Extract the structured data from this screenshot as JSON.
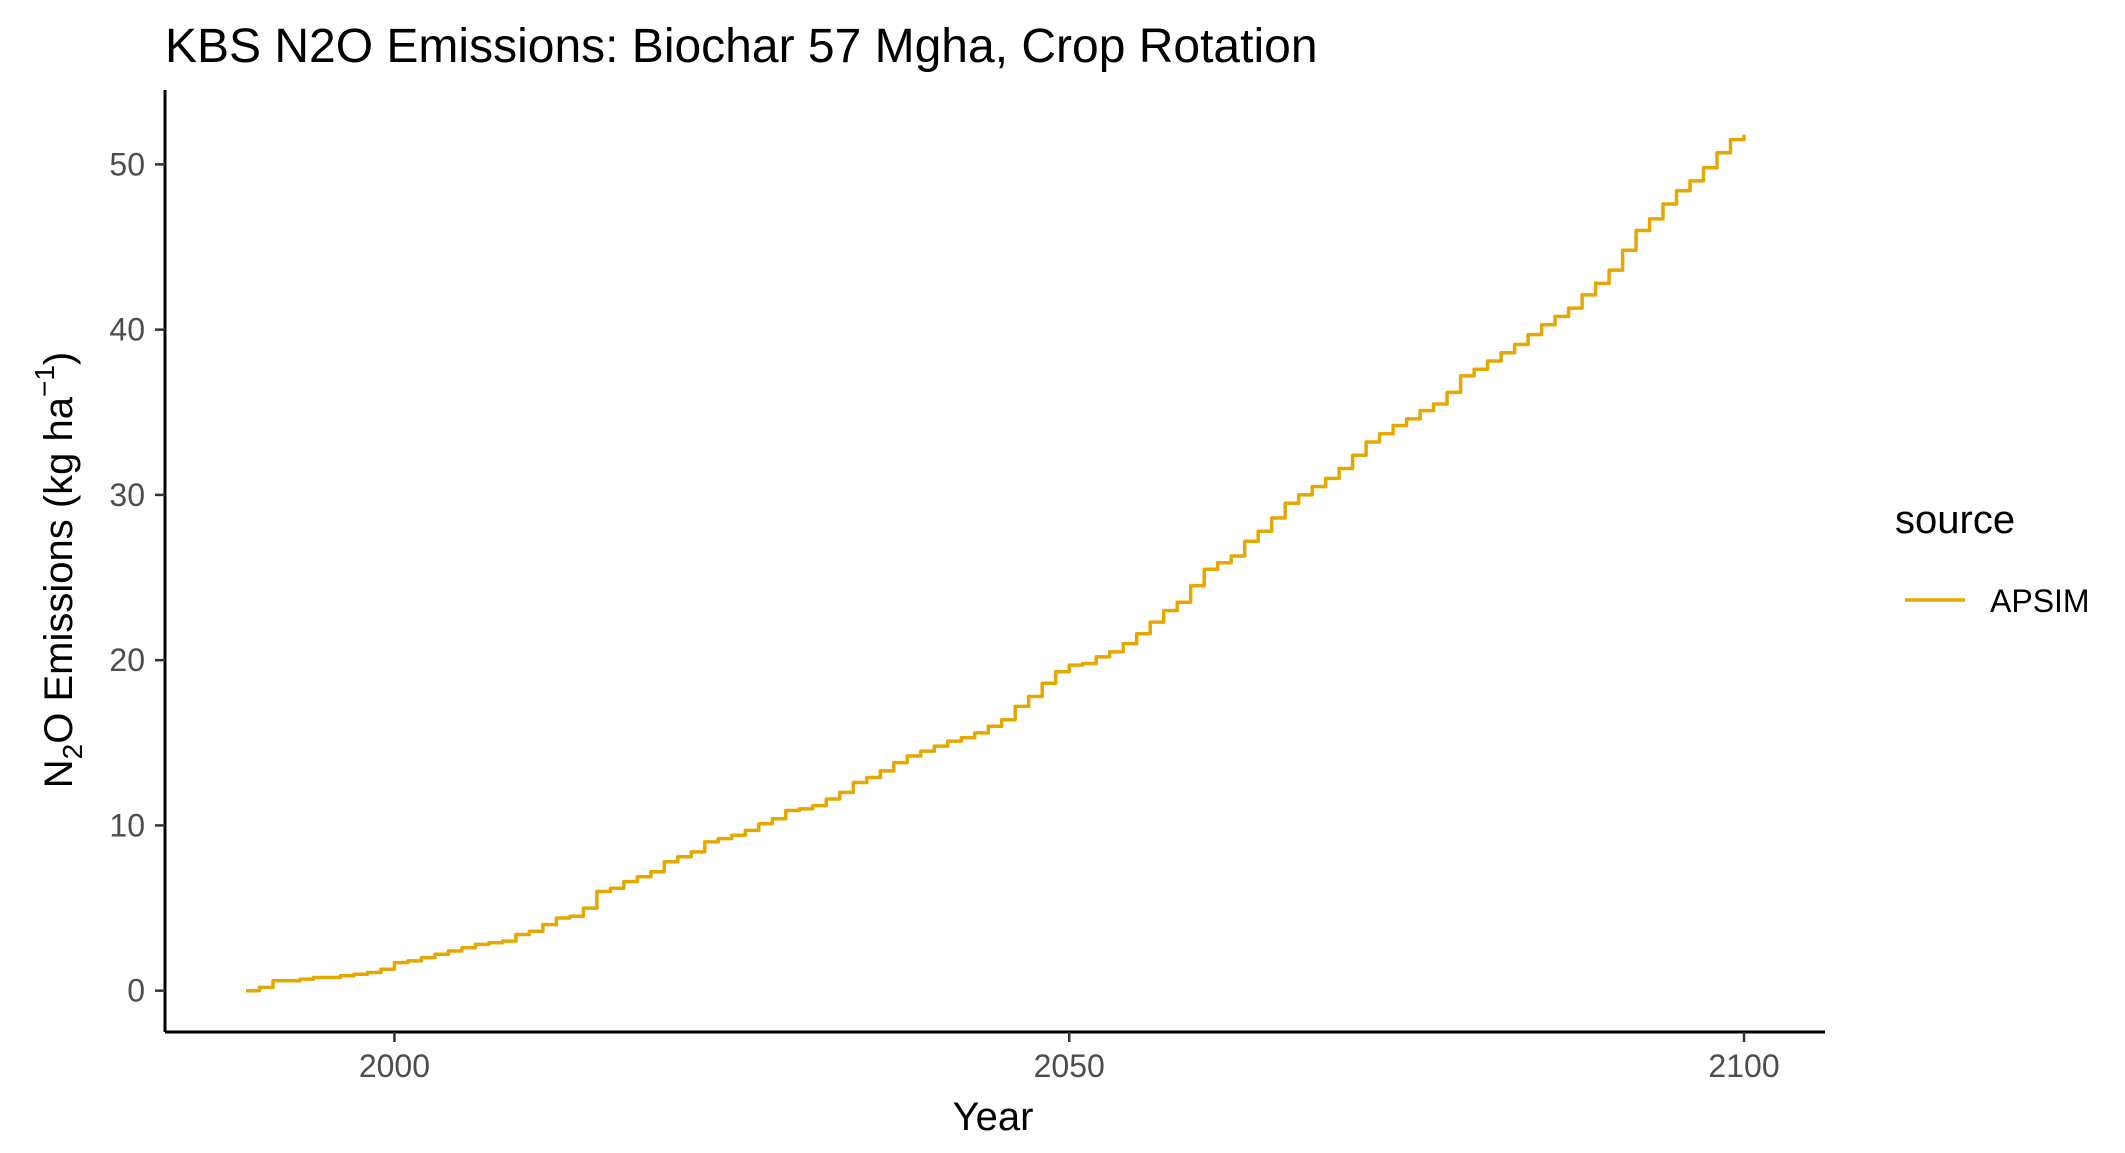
{
  "chart_data": {
    "type": "line",
    "title": "KBS N2O Emissions:  Biochar 57 Mgha, Crop Rotation",
    "xlabel": "Year",
    "ylabel": {
      "main": "N",
      "sub": "2",
      "rest": "O Emissions (kg ha",
      "sup": "−1",
      "close": ")"
    },
    "xlim": [
      1983,
      2106
    ],
    "ylim": [
      -2.5,
      54.5
    ],
    "x_ticks": [
      2000,
      2050,
      2100
    ],
    "y_ticks": [
      0,
      10,
      20,
      30,
      40,
      50
    ],
    "grid": false,
    "legend": {
      "title": "source",
      "position": "right",
      "entries": [
        {
          "label": "APSIM",
          "color": "#E6A800"
        }
      ]
    },
    "series": [
      {
        "name": "APSIM",
        "color": "#E6A800",
        "points": [
          [
            1989,
            0.0
          ],
          [
            1990,
            0.2
          ],
          [
            1991,
            0.6
          ],
          [
            1992,
            0.6
          ],
          [
            1993,
            0.7
          ],
          [
            1994,
            0.8
          ],
          [
            1995,
            0.8
          ],
          [
            1996,
            0.9
          ],
          [
            1997,
            1.0
          ],
          [
            1998,
            1.1
          ],
          [
            1999,
            1.3
          ],
          [
            2000,
            1.7
          ],
          [
            2001,
            1.8
          ],
          [
            2002,
            2.0
          ],
          [
            2003,
            2.2
          ],
          [
            2004,
            2.4
          ],
          [
            2005,
            2.6
          ],
          [
            2006,
            2.8
          ],
          [
            2007,
            2.9
          ],
          [
            2008,
            3.0
          ],
          [
            2009,
            3.4
          ],
          [
            2010,
            3.6
          ],
          [
            2011,
            4.0
          ],
          [
            2012,
            4.4
          ],
          [
            2013,
            4.5
          ],
          [
            2014,
            5.0
          ],
          [
            2015,
            6.0
          ],
          [
            2016,
            6.2
          ],
          [
            2017,
            6.6
          ],
          [
            2018,
            6.9
          ],
          [
            2019,
            7.2
          ],
          [
            2020,
            7.8
          ],
          [
            2021,
            8.1
          ],
          [
            2022,
            8.4
          ],
          [
            2023,
            9.0
          ],
          [
            2024,
            9.2
          ],
          [
            2025,
            9.4
          ],
          [
            2026,
            9.7
          ],
          [
            2027,
            10.1
          ],
          [
            2028,
            10.4
          ],
          [
            2029,
            10.9
          ],
          [
            2030,
            11.0
          ],
          [
            2031,
            11.2
          ],
          [
            2032,
            11.6
          ],
          [
            2033,
            12.0
          ],
          [
            2034,
            12.6
          ],
          [
            2035,
            12.9
          ],
          [
            2036,
            13.3
          ],
          [
            2037,
            13.8
          ],
          [
            2038,
            14.2
          ],
          [
            2039,
            14.5
          ],
          [
            2040,
            14.8
          ],
          [
            2041,
            15.1
          ],
          [
            2042,
            15.3
          ],
          [
            2043,
            15.6
          ],
          [
            2044,
            16.0
          ],
          [
            2045,
            16.4
          ],
          [
            2046,
            17.2
          ],
          [
            2047,
            17.8
          ],
          [
            2048,
            18.6
          ],
          [
            2049,
            19.3
          ],
          [
            2050,
            19.7
          ],
          [
            2051,
            19.8
          ],
          [
            2052,
            20.2
          ],
          [
            2053,
            20.5
          ],
          [
            2054,
            21.0
          ],
          [
            2055,
            21.6
          ],
          [
            2056,
            22.3
          ],
          [
            2057,
            23.0
          ],
          [
            2058,
            23.5
          ],
          [
            2059,
            24.5
          ],
          [
            2060,
            25.5
          ],
          [
            2061,
            25.9
          ],
          [
            2062,
            26.3
          ],
          [
            2063,
            27.2
          ],
          [
            2064,
            27.8
          ],
          [
            2065,
            28.6
          ],
          [
            2066,
            29.5
          ],
          [
            2067,
            30.0
          ],
          [
            2068,
            30.5
          ],
          [
            2069,
            31.0
          ],
          [
            2070,
            31.6
          ],
          [
            2071,
            32.4
          ],
          [
            2072,
            33.2
          ],
          [
            2073,
            33.7
          ],
          [
            2074,
            34.2
          ],
          [
            2075,
            34.6
          ],
          [
            2076,
            35.1
          ],
          [
            2077,
            35.5
          ],
          [
            2078,
            36.2
          ],
          [
            2079,
            37.2
          ],
          [
            2080,
            37.6
          ],
          [
            2081,
            38.1
          ],
          [
            2082,
            38.6
          ],
          [
            2083,
            39.1
          ],
          [
            2084,
            39.7
          ],
          [
            2085,
            40.3
          ],
          [
            2086,
            40.8
          ],
          [
            2087,
            41.3
          ],
          [
            2088,
            42.1
          ],
          [
            2089,
            42.8
          ],
          [
            2090,
            43.6
          ],
          [
            2091,
            44.8
          ],
          [
            2092,
            46.0
          ],
          [
            2093,
            46.7
          ],
          [
            2094,
            47.6
          ],
          [
            2095,
            48.4
          ],
          [
            2096,
            49.0
          ],
          [
            2097,
            49.8
          ],
          [
            2098,
            50.7
          ],
          [
            2099,
            51.5
          ],
          [
            2100,
            51.8
          ]
        ]
      }
    ]
  }
}
